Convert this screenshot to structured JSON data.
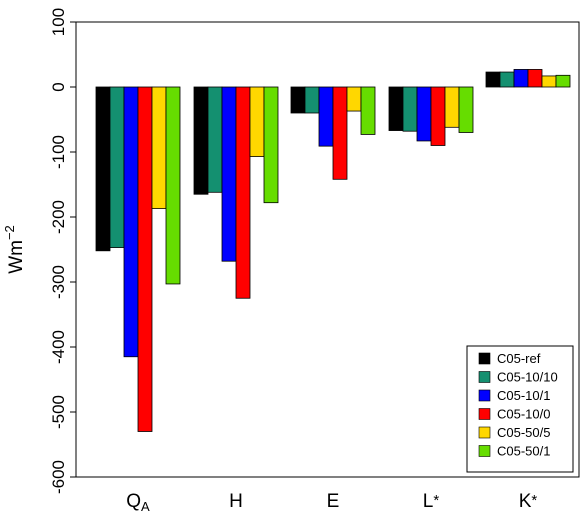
{
  "chart_data": {
    "type": "bar",
    "ylabel": "Wm",
    "ylabel_superscript": "−2",
    "ylim": [
      -600,
      100
    ],
    "yticks": [
      100,
      0,
      -100,
      -200,
      -300,
      -400,
      -500,
      -600
    ],
    "categories": [
      {
        "main": "Q",
        "sub": "A",
        "sup": ""
      },
      {
        "main": "H",
        "sub": "",
        "sup": ""
      },
      {
        "main": "E",
        "sub": "",
        "sup": ""
      },
      {
        "main": "L",
        "sub": "",
        "sup": "*"
      },
      {
        "main": "K",
        "sub": "",
        "sup": "*"
      }
    ],
    "series": [
      {
        "name": "C05-ref",
        "color": "#000000",
        "values": [
          -252,
          -165,
          -40,
          -67,
          23
        ]
      },
      {
        "name": "C05-10/10",
        "color": "#149070",
        "values": [
          -247,
          -162,
          -40,
          -68,
          23
        ]
      },
      {
        "name": "C05-10/1",
        "color": "#0000ff",
        "values": [
          -415,
          -268,
          -91,
          -83,
          27
        ]
      },
      {
        "name": "C05-10/0",
        "color": "#ff0000",
        "values": [
          -530,
          -325,
          -142,
          -90,
          27
        ]
      },
      {
        "name": "C05-50/5",
        "color": "#ffd700",
        "values": [
          -187,
          -107,
          -37,
          -62,
          17
        ]
      },
      {
        "name": "C05-50/1",
        "color": "#66dd00",
        "values": [
          -303,
          -178,
          -73,
          -70,
          18
        ]
      }
    ],
    "grid": false,
    "legend_position": "bottom-right"
  }
}
